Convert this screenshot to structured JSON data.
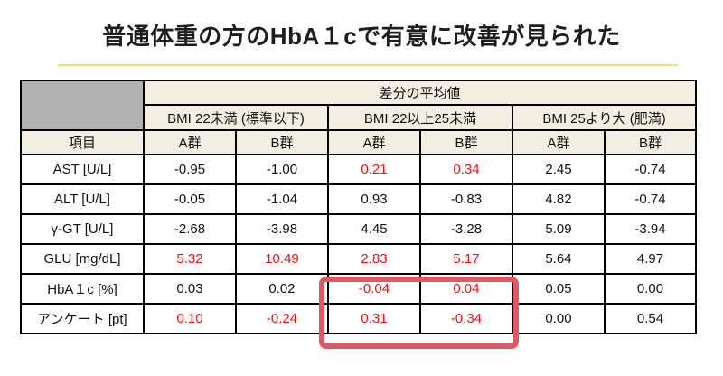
{
  "title": "普通体重の方のHbA１cで有意に改善が見られた",
  "table": {
    "group_header": "差分の平均値",
    "item_header": "項目",
    "bmi_headers": [
      "BMI 22未満 (標準以下)",
      "BMI 22以上25未満",
      "BMI 25より大 (肥満)"
    ],
    "group_labels": [
      "A群",
      "B群",
      "A群",
      "B群",
      "A群",
      "B群"
    ],
    "rows": [
      {
        "label": "AST [U/L]",
        "cells": [
          {
            "v": "-0.95",
            "red": false
          },
          {
            "v": "-1.00",
            "red": false
          },
          {
            "v": "0.21",
            "red": true
          },
          {
            "v": "0.34",
            "red": true
          },
          {
            "v": "2.45",
            "red": false
          },
          {
            "v": "-0.74",
            "red": false
          }
        ]
      },
      {
        "label": "ALT [U/L]",
        "cells": [
          {
            "v": "-0.05",
            "red": false
          },
          {
            "v": "-1.04",
            "red": false
          },
          {
            "v": "0.93",
            "red": false
          },
          {
            "v": "-0.83",
            "red": false
          },
          {
            "v": "4.82",
            "red": false
          },
          {
            "v": "-0.74",
            "red": false
          }
        ]
      },
      {
        "label": "γ-GT [U/L]",
        "cells": [
          {
            "v": "-2.68",
            "red": false
          },
          {
            "v": "-3.98",
            "red": false
          },
          {
            "v": "4.45",
            "red": false
          },
          {
            "v": "-3.28",
            "red": false
          },
          {
            "v": "5.09",
            "red": false
          },
          {
            "v": "-3.94",
            "red": false
          }
        ]
      },
      {
        "label": "GLU [mg/dL]",
        "cells": [
          {
            "v": "5.32",
            "red": true
          },
          {
            "v": "10.49",
            "red": true
          },
          {
            "v": "2.83",
            "red": true
          },
          {
            "v": "5.17",
            "red": true
          },
          {
            "v": "5.64",
            "red": false
          },
          {
            "v": "4.97",
            "red": false
          }
        ]
      },
      {
        "label": "HbA１c [%]",
        "cells": [
          {
            "v": "0.03",
            "red": false
          },
          {
            "v": "0.02",
            "red": false
          },
          {
            "v": "-0.04",
            "red": true
          },
          {
            "v": "0.04",
            "red": true
          },
          {
            "v": "0.05",
            "red": false
          },
          {
            "v": "0.00",
            "red": false
          }
        ]
      },
      {
        "label": "アンケート [pt]",
        "cells": [
          {
            "v": "0.10",
            "red": true
          },
          {
            "v": "-0.24",
            "red": true
          },
          {
            "v": "0.31",
            "red": true
          },
          {
            "v": "-0.34",
            "red": true
          },
          {
            "v": "0.00",
            "red": false
          },
          {
            "v": "0.54",
            "red": false
          }
        ]
      }
    ]
  },
  "colors": {
    "red_text": "#ee1111",
    "highlight_box_border": "#dd5a64",
    "header_bg": "#f2eee2",
    "corner_cell_bg": "#b3b3b3",
    "title_underline": "#e6e17b"
  }
}
